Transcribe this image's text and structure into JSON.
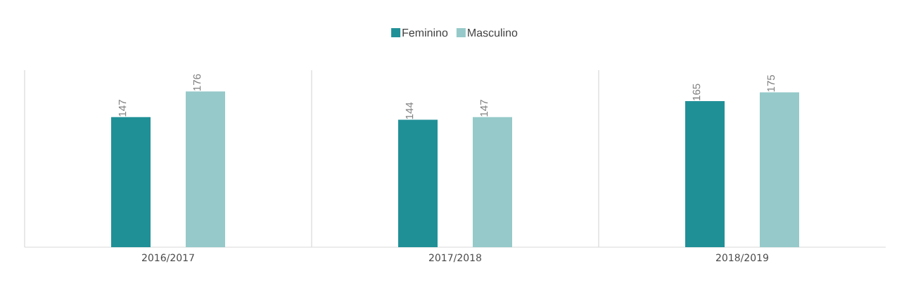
{
  "chart_data": {
    "type": "bar",
    "categories": [
      "2016/2017",
      "2017/2018",
      "2018/2019"
    ],
    "series": [
      {
        "name": "Feminino",
        "color": "#209097",
        "values": [
          147,
          144,
          165
        ]
      },
      {
        "name": "Masculino",
        "color": "#96c9c9",
        "values": [
          176,
          147,
          175
        ]
      }
    ],
    "data_labels": true,
    "legend": "top",
    "grid": "x"
  }
}
